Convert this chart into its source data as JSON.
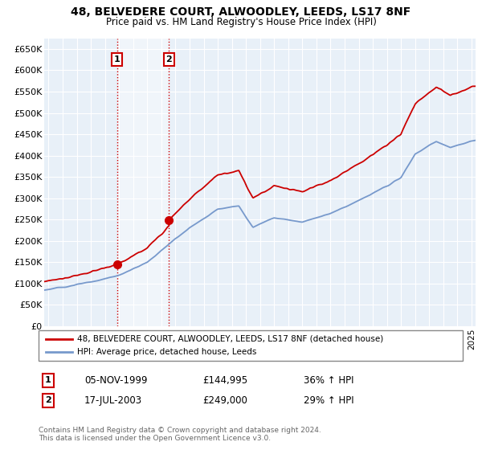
{
  "title": "48, BELVEDERE COURT, ALWOODLEY, LEEDS, LS17 8NF",
  "subtitle": "Price paid vs. HM Land Registry's House Price Index (HPI)",
  "ylabel_ticks": [
    "£0",
    "£50K",
    "£100K",
    "£150K",
    "£200K",
    "£250K",
    "£300K",
    "£350K",
    "£400K",
    "£450K",
    "£500K",
    "£550K",
    "£600K",
    "£650K"
  ],
  "ytick_values": [
    0,
    50000,
    100000,
    150000,
    200000,
    250000,
    300000,
    350000,
    400000,
    450000,
    500000,
    550000,
    600000,
    650000
  ],
  "ylim": [
    0,
    675000
  ],
  "xlim_start": 1994.7,
  "xlim_end": 2025.3,
  "sale1_x": 1999.85,
  "sale1_y": 144995,
  "sale1_label": "1",
  "sale1_date": "05-NOV-1999",
  "sale1_price": "£144,995",
  "sale1_hpi": "36% ↑ HPI",
  "sale2_x": 2003.54,
  "sale2_y": 249000,
  "sale2_label": "2",
  "sale2_date": "17-JUL-2003",
  "sale2_price": "£249,000",
  "sale2_hpi": "29% ↑ HPI",
  "legend_label_red": "48, BELVEDERE COURT, ALWOODLEY, LEEDS, LS17 8NF (detached house)",
  "legend_label_blue": "HPI: Average price, detached house, Leeds",
  "footer": "Contains HM Land Registry data © Crown copyright and database right 2024.\nThis data is licensed under the Open Government Licence v3.0.",
  "red_color": "#cc0000",
  "blue_color": "#7799cc",
  "shade_color": "#ddeeff",
  "bg_color": "#e8f0f8",
  "grid_color": "#ffffff",
  "vline_color": "#cc0000",
  "box_color": "#cc0000",
  "sale1_price_val": 144995,
  "sale2_price_val": 249000
}
